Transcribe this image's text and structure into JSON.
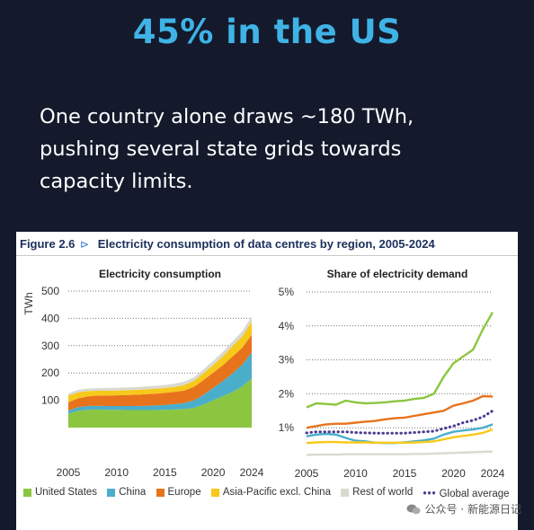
{
  "headline": "45% in the US",
  "body_lines": [
    "One country alone draws ~180 TWh,",
    "pushing several state grids towards",
    "capacity limits."
  ],
  "figure": {
    "number": "Figure 2.6",
    "arrow": "⊳",
    "title": "Electricity consumption of data centres by region, 2005-2024"
  },
  "legend": [
    {
      "label": "United States",
      "color": "#8cc641"
    },
    {
      "label": "China",
      "color": "#4aaecb"
    },
    {
      "label": "Europe",
      "color": "#e8731d"
    },
    {
      "label": "Asia-Pacific excl. China",
      "color": "#f7c91b"
    },
    {
      "label": "Rest of world",
      "color": "#d9d9d0"
    },
    {
      "label": "Global average",
      "color": "#4b3b8f",
      "style": "dotted"
    }
  ],
  "watermark": "公众号 · 新能源日记",
  "chart_data": [
    {
      "type": "area",
      "title": "Electricity consumption",
      "ylabel": "TWh",
      "x": [
        2005,
        2006,
        2007,
        2008,
        2009,
        2010,
        2011,
        2012,
        2013,
        2014,
        2015,
        2016,
        2017,
        2018,
        2019,
        2020,
        2021,
        2022,
        2023,
        2024
      ],
      "xticks": [
        2005,
        2010,
        2015,
        2020,
        2024
      ],
      "yticks": [
        100,
        200,
        300,
        400,
        500
      ],
      "ylim": [
        0,
        500
      ],
      "stacked": true,
      "series": [
        {
          "name": "United States",
          "color": "#8cc641",
          "values": [
            50,
            62,
            65,
            66,
            65,
            65,
            64,
            64,
            64,
            64,
            65,
            66,
            68,
            72,
            85,
            100,
            115,
            130,
            150,
            180
          ]
        },
        {
          "name": "China",
          "color": "#4aaecb",
          "values": [
            12,
            13,
            14,
            14,
            14,
            14,
            15,
            15,
            16,
            17,
            18,
            20,
            22,
            27,
            35,
            45,
            55,
            68,
            80,
            95
          ]
        },
        {
          "name": "Europe",
          "color": "#e8731d",
          "values": [
            30,
            32,
            35,
            37,
            38,
            39,
            40,
            41,
            42,
            43,
            44,
            45,
            46,
            50,
            54,
            56,
            58,
            62,
            62,
            65
          ]
        },
        {
          "name": "Asia-Pacific excl. China",
          "color": "#f7c91b",
          "values": [
            25,
            22,
            20,
            18,
            18,
            18,
            18,
            18,
            18,
            18,
            18,
            18,
            20,
            22,
            25,
            28,
            33,
            38,
            42,
            48
          ]
        },
        {
          "name": "Rest of world",
          "color": "#d9d9d0",
          "values": [
            8,
            9,
            9,
            9,
            10,
            10,
            10,
            10,
            11,
            11,
            11,
            12,
            12,
            13,
            14,
            15,
            16,
            17,
            18,
            20
          ]
        }
      ]
    },
    {
      "type": "line",
      "title": "Share of electricity demand",
      "x": [
        2005,
        2006,
        2007,
        2008,
        2009,
        2010,
        2011,
        2012,
        2013,
        2014,
        2015,
        2016,
        2017,
        2018,
        2019,
        2020,
        2021,
        2022,
        2023,
        2024
      ],
      "xticks": [
        2005,
        2010,
        2015,
        2020,
        2024
      ],
      "yticks": [
        "1%",
        "2%",
        "3%",
        "4%",
        "5%"
      ],
      "ylim": [
        0,
        5
      ],
      "series": [
        {
          "name": "United States",
          "color": "#8cc641",
          "values": [
            1.6,
            1.72,
            1.7,
            1.68,
            1.8,
            1.75,
            1.72,
            1.73,
            1.75,
            1.78,
            1.8,
            1.85,
            1.88,
            2.0,
            2.5,
            2.9,
            3.1,
            3.3,
            3.9,
            4.4
          ]
        },
        {
          "name": "China",
          "color": "#4aaecb",
          "values": [
            0.75,
            0.8,
            0.82,
            0.8,
            0.7,
            0.62,
            0.6,
            0.56,
            0.55,
            0.55,
            0.57,
            0.6,
            0.63,
            0.68,
            0.8,
            0.88,
            0.92,
            0.95,
            1.0,
            1.1
          ]
        },
        {
          "name": "Europe",
          "color": "#e8731d",
          "values": [
            1.0,
            1.05,
            1.1,
            1.12,
            1.12,
            1.15,
            1.18,
            1.2,
            1.25,
            1.28,
            1.3,
            1.35,
            1.4,
            1.45,
            1.5,
            1.65,
            1.72,
            1.8,
            1.93,
            1.92
          ]
        },
        {
          "name": "Asia-Pacific excl. China",
          "color": "#f7c91b",
          "values": [
            0.55,
            0.57,
            0.58,
            0.58,
            0.57,
            0.57,
            0.57,
            0.56,
            0.56,
            0.56,
            0.56,
            0.57,
            0.58,
            0.6,
            0.66,
            0.72,
            0.76,
            0.8,
            0.85,
            0.95
          ]
        },
        {
          "name": "Rest of world",
          "color": "#d9d9d0",
          "values": [
            0.2,
            0.21,
            0.21,
            0.21,
            0.22,
            0.22,
            0.22,
            0.22,
            0.22,
            0.22,
            0.22,
            0.23,
            0.23,
            0.24,
            0.25,
            0.26,
            0.27,
            0.28,
            0.29,
            0.3
          ]
        },
        {
          "name": "Global average",
          "color": "#4b3b8f",
          "dotted": true,
          "values": [
            0.85,
            0.88,
            0.88,
            0.88,
            0.88,
            0.86,
            0.85,
            0.84,
            0.84,
            0.84,
            0.84,
            0.86,
            0.88,
            0.9,
            0.98,
            1.05,
            1.15,
            1.22,
            1.32,
            1.5
          ]
        }
      ]
    }
  ]
}
